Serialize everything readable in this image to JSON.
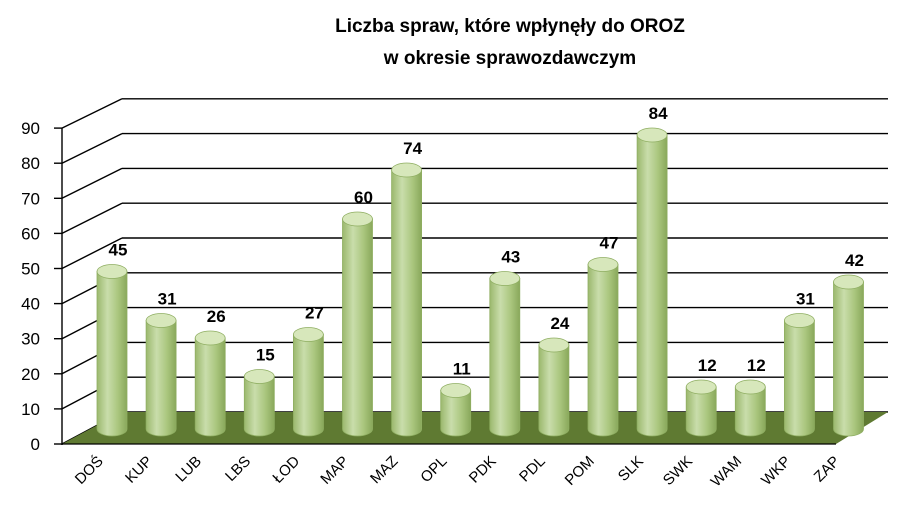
{
  "chart_data": {
    "type": "bar",
    "title_lines": [
      "Liczba spraw, które wpłynęły do OROZ",
      "w okresie sprawozdawczym"
    ],
    "categories": [
      "DOŚ",
      "KUP",
      "LUB",
      "LBS",
      "ŁOD",
      "MAP",
      "MAZ",
      "OPL",
      "PDK",
      "PDL",
      "POM",
      "SLK",
      "SWK",
      "WAM",
      "WKP",
      "ZAP"
    ],
    "values": [
      45,
      31,
      26,
      15,
      27,
      60,
      74,
      11,
      43,
      24,
      47,
      84,
      12,
      12,
      31,
      42
    ],
    "yticks": [
      "0",
      "10",
      "20",
      "30",
      "40",
      "50",
      "60",
      "70",
      "80",
      "90"
    ],
    "ylim": [
      0,
      90
    ],
    "xlabel": "",
    "ylabel": "",
    "grid": true,
    "style": "3d-cylinder",
    "colors": {
      "bar": "#b5cf8c",
      "bar_dark": "#8fae62",
      "bar_top": "#d7e7bb",
      "floor": "#5f7a32",
      "grid": "#000000"
    }
  }
}
